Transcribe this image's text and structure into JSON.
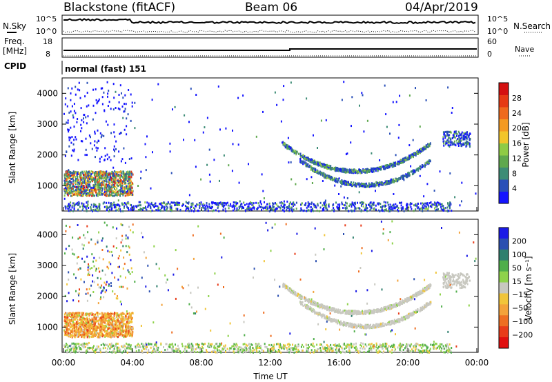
{
  "header": {
    "radar": "Blackstone (fitACF)",
    "beam": "Beam 06",
    "date": "04/Apr/2019"
  },
  "noise_panel": {
    "left_label": "N.Sky",
    "right_label": "N.Search",
    "ticks_left": [
      "10^5",
      "10^0"
    ],
    "ticks_right": [
      "10^5",
      "10^0"
    ]
  },
  "freq_panel": {
    "left_label_1": "Freq.",
    "left_label_2": "[MHz]",
    "right_label": "Nave",
    "ticks_left": [
      "18",
      "8"
    ],
    "ticks_right": [
      "60",
      "0"
    ]
  },
  "cpid": {
    "label": "CPID",
    "value": "normal (fast) 151"
  },
  "chart_data": [
    {
      "type": "heatmap",
      "quantity": "Power",
      "ylabel": "Slant Range [km]",
      "ylim": [
        180,
        4500
      ],
      "yticks": [
        "1000",
        "2000",
        "3000",
        "4000"
      ],
      "colorbar_label": "Power [dB]",
      "colorbar_ticks": [
        "4",
        "8",
        "12",
        "16",
        "20",
        "24",
        "28"
      ],
      "colors": [
        "#1515ff",
        "#2a50b8",
        "#3d8c76",
        "#5fa84e",
        "#8fcb45",
        "#f2c52a",
        "#f49a22",
        "#ef6a1d",
        "#e63a14",
        "#d41010"
      ]
    },
    {
      "type": "heatmap",
      "quantity": "Velocity",
      "ylabel": "Slant Range [km]",
      "ylim": [
        180,
        4500
      ],
      "yticks": [
        "1000",
        "2000",
        "3000",
        "4000"
      ],
      "colorbar_label": "Velocity [m s⁻¹]",
      "colorbar_ticks": [
        "200",
        "100",
        "50",
        "15",
        "−15",
        "−50",
        "−100",
        "−200"
      ],
      "colors": [
        "#1a1ae6",
        "#2b4fb0",
        "#2f7f6e",
        "#4fae4a",
        "#8ed24a",
        "#c8c8c0",
        "#f1c53a",
        "#f3a23a",
        "#ee6e22",
        "#e83c1a",
        "#e01010"
      ]
    }
  ],
  "xaxis": {
    "ticks": [
      "00:00",
      "04:00",
      "08:00",
      "12:00",
      "16:00",
      "20:00",
      "00:00"
    ],
    "label": "Time UT"
  }
}
